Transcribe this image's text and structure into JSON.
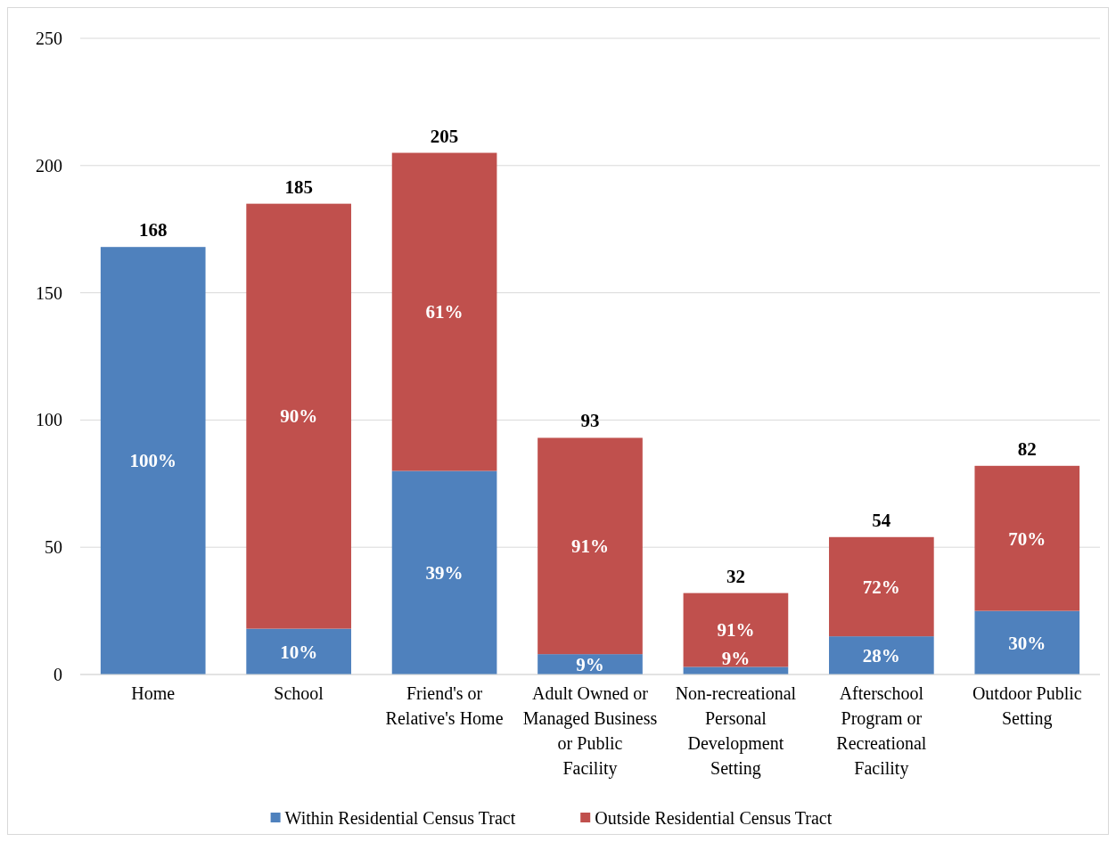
{
  "chart_data": {
    "type": "bar",
    "stacked": true,
    "categories": [
      "Home",
      "School",
      "Friend's or Relative's Home",
      "Adult Owned or Managed Business or Public Facility",
      "Non-recreational Personal Development Setting",
      "Afterschool Program or Recreational Facility",
      "Outdoor Public Setting"
    ],
    "series": [
      {
        "name": "Within Residential Census Tract",
        "color": "#4f81bd",
        "values": [
          168,
          18,
          80,
          8,
          3,
          15,
          25
        ]
      },
      {
        "name": "Outside Residential Census Tract",
        "color": "#c0504d",
        "values": [
          null,
          167,
          125,
          85,
          29,
          39,
          57
        ]
      }
    ],
    "annotations": [
      "100%",
      "10%",
      "39%",
      "9%",
      "9%",
      "28%",
      "30%",
      "90%",
      "61%",
      "91%",
      "91%",
      "72%",
      "70%"
    ],
    "totals": [
      "168",
      "185",
      "205",
      "93",
      "32",
      "54",
      "82"
    ],
    "ylim": [
      0,
      250
    ],
    "yticks": [
      0,
      50,
      100,
      150,
      200,
      250
    ],
    "grid": "y",
    "legend": "bottom"
  }
}
